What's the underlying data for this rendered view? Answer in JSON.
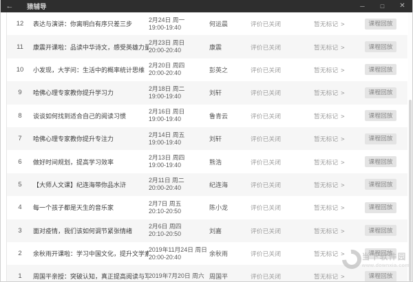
{
  "window": {
    "title": "猿辅导",
    "back_icon": "←",
    "minimize_icon": "─",
    "maximize_icon": "□",
    "close_icon": "✕"
  },
  "list": {
    "eval_status": "评价已关闭",
    "mark_label": "暂无标记",
    "chevron": ">",
    "action_label": "课程回放",
    "rows": [
      {
        "num": "12",
        "title": "表达与演讲：你离明白有序只差三步",
        "date": "2月24日 周一",
        "time": "19:00-19:40",
        "teacher": "何运晨"
      },
      {
        "num": "11",
        "title": "康震开课啦：品读中华诗文，感受英雄力量",
        "date": "2月23日 周日",
        "time": "20:00-20:40",
        "teacher": "康震"
      },
      {
        "num": "10",
        "title": "小发现，大学问：生活中的概率统计思维",
        "date": "2月20日 周四",
        "time": "20:00-20:40",
        "teacher": "彭英之"
      },
      {
        "num": "9",
        "title": "哈佛心理专家教你提升学习力",
        "date": "2月18日 周二",
        "time": "19:00-19:40",
        "teacher": "刘轩"
      },
      {
        "num": "8",
        "title": "谈谈如何找到适合自己的阅读习惯",
        "date": "2月16日 周日",
        "time": "19:00-19:40",
        "teacher": "鲁青云"
      },
      {
        "num": "7",
        "title": "哈佛心理专家教你提升专注力",
        "date": "2月14日 周五",
        "time": "19:00-19:40",
        "teacher": "刘轩"
      },
      {
        "num": "6",
        "title": "做好时间规划，提高学习效率",
        "date": "2月13日 周四",
        "time": "19:00-19:40",
        "teacher": "熊浩"
      },
      {
        "num": "5",
        "title": "【大师人文课】纪连海带你品水浒",
        "date": "2月11日 周二",
        "time": "20:00-20:40",
        "teacher": "纪连海"
      },
      {
        "num": "4",
        "title": "每一个孩子都是天生的音乐家",
        "date": "2月7日 周五",
        "time": "20:10-20:50",
        "teacher": "陈小龙"
      },
      {
        "num": "3",
        "title": "面对疫情，我们该如何调节紧张情绪",
        "date": "2月6日 周四",
        "time": "20:10-20:50",
        "teacher": "刘嘉"
      },
      {
        "num": "2",
        "title": "余秋雨开课啦：学习中国文化，提升文学素养",
        "date": "2019年11月24日 周日",
        "time": "20:00-20:40",
        "teacher": "余秋雨"
      },
      {
        "num": "1",
        "title": "周国平亲授：突破认知，真正提高阅读与写作能力",
        "date": "2019年7月20日 周六",
        "time": "",
        "teacher": "周国平"
      }
    ]
  },
  "watermark": {
    "site_name": "当下软件园",
    "site_url": "www.downxia.com"
  }
}
